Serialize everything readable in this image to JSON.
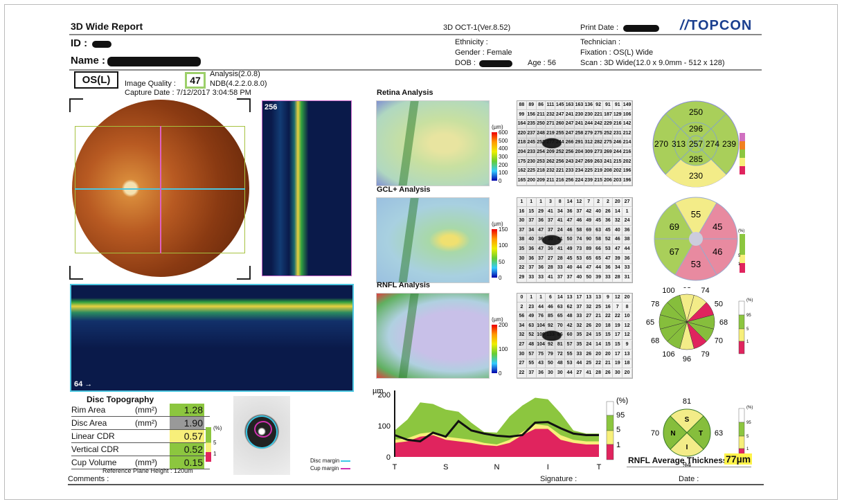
{
  "header": {
    "title": "3D Wide Report",
    "version": "3D OCT-1(Ver.8.52)",
    "print_date_label": "Print Date :",
    "brand": "TOPCON",
    "id_label": "ID :",
    "name_label": "Name :",
    "ethnicity": "Ethnicity :",
    "gender": "Gender : Female",
    "dob_label": "DOB :",
    "age": "Age : 56",
    "technician": "Technician :",
    "fixation": "Fixation : OS(L) Wide",
    "scan": "Scan : 3D Wide(12.0 x 9.0mm - 512 x 128)"
  },
  "eye": "OS(L)",
  "quality": {
    "label": "Image Quality :",
    "value": "47",
    "analysis": "Analysis(2.0.8)",
    "ndb": "NDB(4.2.2.0.8.0)",
    "capture": "Capture Date : 7/12/2017 3:04:58 PM"
  },
  "bscan": {
    "vertical_label": "256",
    "horizontal_label": "64 →"
  },
  "retina": {
    "title": "Retina Analysis",
    "unit": "(µm)",
    "scale": [
      "600",
      "500",
      "400",
      "300",
      "200",
      "100",
      "0"
    ],
    "grid": [
      [
        "88",
        "89",
        "86",
        "111",
        "145",
        "163",
        "163",
        "136",
        "92",
        "91",
        "91",
        "149"
      ],
      [
        "99",
        "156",
        "211",
        "232",
        "247",
        "241",
        "230",
        "230",
        "221",
        "187",
        "129",
        "106"
      ],
      [
        "164",
        "235",
        "250",
        "271",
        "260",
        "247",
        "241",
        "244",
        "242",
        "229",
        "216",
        "142"
      ],
      [
        "220",
        "237",
        "248",
        "219",
        "255",
        "247",
        "258",
        "279",
        "275",
        "252",
        "231",
        "212"
      ],
      [
        "218",
        "245",
        "253",
        "277",
        "244",
        "266",
        "291",
        "312",
        "282",
        "275",
        "246",
        "214"
      ],
      [
        "204",
        "233",
        "254",
        "209",
        "252",
        "256",
        "204",
        "309",
        "273",
        "269",
        "244",
        "216"
      ],
      [
        "175",
        "230",
        "253",
        "262",
        "256",
        "243",
        "247",
        "269",
        "263",
        "241",
        "215",
        "202"
      ],
      [
        "162",
        "225",
        "218",
        "232",
        "221",
        "233",
        "234",
        "225",
        "219",
        "208",
        "202",
        "196"
      ],
      [
        "165",
        "200",
        "209",
        "211",
        "216",
        "256",
        "224",
        "239",
        "215",
        "206",
        "203",
        "196"
      ]
    ],
    "sectors": {
      "outer_s": "250",
      "outer_n": "270",
      "outer_t": "239",
      "outer_i": "230",
      "inner_s": "296",
      "inner_n": "313",
      "inner_t": "274",
      "inner_i": "285",
      "center": "257"
    },
    "legend": [
      "(%)",
      "99",
      "95",
      "5",
      "1"
    ]
  },
  "gcl": {
    "title": "GCL+ Analysis",
    "unit": "(µm)",
    "scale": [
      "150",
      "100",
      "50",
      "0"
    ],
    "grid": [
      [
        "1",
        "1",
        "1",
        "3",
        "8",
        "14",
        "12",
        "7",
        "2",
        "2",
        "20",
        "27"
      ],
      [
        "16",
        "15",
        "29",
        "41",
        "34",
        "36",
        "37",
        "42",
        "40",
        "26",
        "14",
        "1"
      ],
      [
        "30",
        "37",
        "36",
        "37",
        "41",
        "47",
        "46",
        "49",
        "45",
        "36",
        "32",
        "24"
      ],
      [
        "37",
        "34",
        "47",
        "37",
        "24",
        "46",
        "58",
        "69",
        "63",
        "45",
        "40",
        "36"
      ],
      [
        "38",
        "40",
        "36",
        "30",
        "41",
        "50",
        "74",
        "90",
        "58",
        "52",
        "46",
        "38"
      ],
      [
        "35",
        "36",
        "47",
        "36",
        "41",
        "49",
        "73",
        "89",
        "66",
        "53",
        "47",
        "44"
      ],
      [
        "30",
        "36",
        "37",
        "27",
        "28",
        "45",
        "53",
        "65",
        "65",
        "47",
        "39",
        "36"
      ],
      [
        "22",
        "37",
        "36",
        "28",
        "33",
        "40",
        "44",
        "47",
        "44",
        "36",
        "34",
        "33"
      ],
      [
        "29",
        "33",
        "33",
        "41",
        "37",
        "37",
        "40",
        "50",
        "39",
        "33",
        "28",
        "31"
      ]
    ],
    "sectors": [
      {
        "v": "55",
        "c": "#f3ec88"
      },
      {
        "v": "45",
        "c": "#e88aa0"
      },
      {
        "v": "46",
        "c": "#e88aa0"
      },
      {
        "v": "53",
        "c": "#e88aa0"
      },
      {
        "v": "67",
        "c": "#a9cf5a"
      },
      {
        "v": "69",
        "c": "#a9cf5a"
      }
    ],
    "legend": [
      "(%)",
      "5",
      "1"
    ]
  },
  "rnfl": {
    "title": "RNFL Analysis",
    "unit": "(µm)",
    "scale": [
      "200",
      "100",
      "0"
    ],
    "grid": [
      [
        "0",
        "1",
        "1",
        "6",
        "14",
        "13",
        "17",
        "13",
        "13",
        "9",
        "12",
        "20"
      ],
      [
        "2",
        "23",
        "44",
        "46",
        "63",
        "62",
        "37",
        "32",
        "25",
        "16",
        "7",
        "8"
      ],
      [
        "56",
        "49",
        "76",
        "85",
        "65",
        "48",
        "33",
        "27",
        "21",
        "22",
        "22",
        "10"
      ],
      [
        "34",
        "63",
        "104",
        "92",
        "70",
        "42",
        "32",
        "26",
        "20",
        "18",
        "19",
        "12"
      ],
      [
        "32",
        "52",
        "109",
        "133",
        "86",
        "60",
        "35",
        "24",
        "15",
        "15",
        "17",
        "12"
      ],
      [
        "27",
        "48",
        "104",
        "92",
        "81",
        "57",
        "35",
        "24",
        "14",
        "15",
        "15",
        "9"
      ],
      [
        "30",
        "57",
        "75",
        "79",
        "72",
        "55",
        "33",
        "26",
        "20",
        "20",
        "17",
        "13"
      ],
      [
        "27",
        "55",
        "43",
        "50",
        "48",
        "53",
        "44",
        "25",
        "22",
        "21",
        "19",
        "18"
      ],
      [
        "22",
        "37",
        "36",
        "30",
        "30",
        "44",
        "27",
        "41",
        "28",
        "26",
        "30",
        "20"
      ]
    ],
    "clock": [
      {
        "v": "68",
        "c": "#f3ec88"
      },
      {
        "v": "74",
        "c": "#f3ec88"
      },
      {
        "v": "50",
        "c": "#e0245e"
      },
      {
        "v": "68",
        "c": "#86be3c"
      },
      {
        "v": "70",
        "c": "#86be3c"
      },
      {
        "v": "79",
        "c": "#e0245e"
      },
      {
        "v": "96",
        "c": "#f3ec88"
      },
      {
        "v": "106",
        "c": "#86be3c"
      },
      {
        "v": "68",
        "c": "#86be3c"
      },
      {
        "v": "65",
        "c": "#86be3c"
      },
      {
        "v": "78",
        "c": "#86be3c"
      },
      {
        "v": "100",
        "c": "#86be3c"
      }
    ],
    "quadrants": [
      {
        "k": "S",
        "v": "81",
        "c": "#f3ec88"
      },
      {
        "k": "T",
        "v": "63",
        "c": "#86be3c"
      },
      {
        "k": "I",
        "v": "94",
        "c": "#f3ec88"
      },
      {
        "k": "N",
        "v": "70",
        "c": "#86be3c"
      }
    ],
    "legend": [
      "(%)",
      "95",
      "5",
      "1"
    ],
    "avg_label": "RNFL Average Thickness",
    "avg_value": "77µm"
  },
  "disc": {
    "title": "Disc Topography",
    "rows": [
      {
        "label": "Rim Area",
        "unit": "(mm²)",
        "value": "1.28",
        "color": "#8cc63f"
      },
      {
        "label": "Disc Area",
        "unit": "(mm²)",
        "value": "1.90",
        "color": "#999999"
      },
      {
        "label": "Linear CDR",
        "unit": "",
        "value": "0.57",
        "color": "#f7ef7a"
      },
      {
        "label": "Vertical CDR",
        "unit": "",
        "value": "0.52",
        "color": "#8cc63f"
      },
      {
        "label": "Cup Volume",
        "unit": "(mm³)",
        "value": "0.15",
        "color": "#8cc63f"
      }
    ],
    "legend": [
      "(%)",
      "5",
      "1"
    ],
    "reference": "Reference Plane Height : 120um",
    "disc_margin": "Disc margin",
    "cup_margin": "Cup margin"
  },
  "chart_data": {
    "type": "area",
    "ylabel": "µm",
    "ylim": [
      0,
      200
    ],
    "yticks": [
      "200",
      "100",
      "0"
    ],
    "xticks": [
      "T",
      "S",
      "N",
      "I",
      "T"
    ],
    "thickness": [
      70,
      55,
      50,
      78,
      65,
      115,
      85,
      75,
      68,
      65,
      70,
      110,
      112,
      92,
      75,
      70,
      70
    ],
    "p95": [
      85,
      120,
      175,
      170,
      152,
      145,
      110,
      80,
      78,
      130,
      165,
      190,
      185,
      140,
      85,
      75,
      75
    ],
    "p5": [
      55,
      60,
      75,
      80,
      65,
      60,
      55,
      45,
      40,
      55,
      80,
      105,
      100,
      70,
      55,
      50,
      50
    ],
    "p1": [
      45,
      50,
      65,
      70,
      55,
      50,
      45,
      38,
      35,
      45,
      70,
      90,
      90,
      55,
      45,
      40,
      40
    ],
    "legend": [
      "(%)",
      "95",
      "5",
      "1"
    ]
  },
  "footer": {
    "comments": "Comments :",
    "signature": "Signature :",
    "date": "Date :"
  }
}
